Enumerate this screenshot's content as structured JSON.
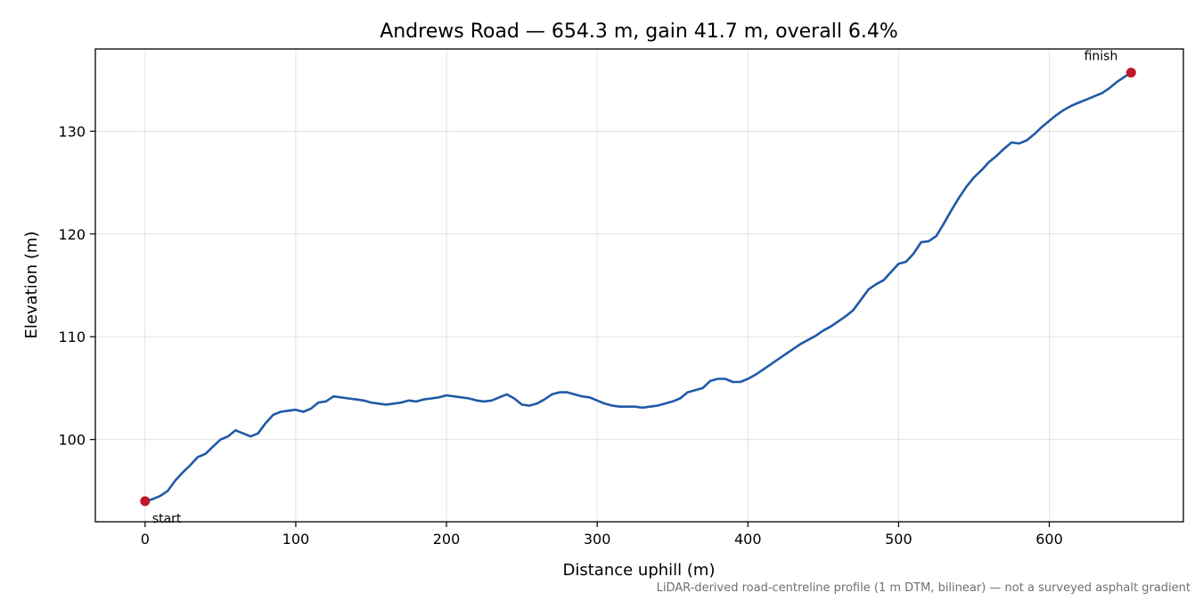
{
  "chart_data": {
    "type": "line",
    "title": "Andrews Road — 654.3 m, gain 41.7 m, overall 6.4%",
    "xlabel": "Distance uphill (m)",
    "ylabel": "Elevation (m)",
    "xlim": [
      -33,
      689
    ],
    "ylim": [
      92,
      138
    ],
    "xticks": [
      0,
      100,
      200,
      300,
      400,
      500,
      600
    ],
    "yticks": [
      100,
      110,
      120,
      130
    ],
    "grid": true,
    "line_color": "#1f5aa6",
    "marker_color": "#c0182a",
    "series": [
      {
        "x": [
          0,
          5,
          10,
          15,
          20,
          25,
          30,
          35,
          40,
          45,
          50,
          55,
          60,
          65,
          70,
          75,
          80,
          85,
          90,
          95,
          100,
          105,
          110,
          115,
          120,
          125,
          130,
          135,
          140,
          145,
          150,
          155,
          160,
          165,
          170,
          175,
          180,
          185,
          190,
          195,
          200,
          205,
          210,
          215,
          220,
          225,
          230,
          235,
          240,
          245,
          250,
          255,
          260,
          265,
          270,
          275,
          280,
          285,
          290,
          295,
          300,
          305,
          310,
          315,
          320,
          325,
          330,
          335,
          340,
          345,
          350,
          355,
          360,
          365,
          370,
          375,
          380,
          385,
          390,
          395,
          400,
          405,
          410,
          415,
          420,
          425,
          430,
          435,
          440,
          445,
          450,
          455,
          460,
          465,
          470,
          475,
          480,
          485,
          490,
          495,
          500,
          505,
          510,
          515,
          520,
          525,
          530,
          535,
          540,
          545,
          550,
          555,
          560,
          565,
          570,
          575,
          580,
          585,
          590,
          595,
          600,
          605,
          610,
          615,
          620,
          625,
          630,
          635,
          640,
          645,
          650,
          654.3
        ],
        "y": [
          94.0,
          94.2,
          94.5,
          95.0,
          96.0,
          96.8,
          97.5,
          98.3,
          98.6,
          99.3,
          100.0,
          100.3,
          100.9,
          100.6,
          100.3,
          100.6,
          101.6,
          102.4,
          102.7,
          102.8,
          102.9,
          102.7,
          103.0,
          103.6,
          103.7,
          104.2,
          104.1,
          104.0,
          103.9,
          103.8,
          103.6,
          103.5,
          103.4,
          103.5,
          103.6,
          103.8,
          103.7,
          103.9,
          104.0,
          104.1,
          104.3,
          104.2,
          104.1,
          104.0,
          103.8,
          103.7,
          103.8,
          104.1,
          104.4,
          104.0,
          103.4,
          103.3,
          103.5,
          103.9,
          104.4,
          104.6,
          104.6,
          104.4,
          104.2,
          104.1,
          103.8,
          103.5,
          103.3,
          103.2,
          103.2,
          103.2,
          103.1,
          103.2,
          103.3,
          103.5,
          103.7,
          104.0,
          104.6,
          104.8,
          105.0,
          105.7,
          105.9,
          105.9,
          105.6,
          105.6,
          105.9,
          106.3,
          106.8,
          107.3,
          107.8,
          108.3,
          108.8,
          109.3,
          109.7,
          110.1,
          110.6,
          111.0,
          111.5,
          112.0,
          112.6,
          113.6,
          114.6,
          115.1,
          115.5,
          116.3,
          117.1,
          117.3,
          118.1,
          119.2,
          119.3,
          119.8,
          121.0,
          122.3,
          123.5,
          124.6,
          125.5,
          126.2,
          127.0,
          127.6,
          128.3,
          128.9,
          128.8,
          129.1,
          129.7,
          130.4,
          131.0,
          131.6,
          132.1,
          132.5,
          132.8,
          133.1,
          133.4,
          133.7,
          134.2,
          134.8,
          135.3,
          135.7
        ]
      }
    ],
    "annotations": [
      {
        "text": "start",
        "x": 0,
        "y": 94.0
      },
      {
        "text": "finish",
        "x": 654.3,
        "y": 135.7
      }
    ],
    "footnote": "LiDAR-derived road-centreline profile (1 m DTM, bilinear) — not a surveyed asphalt gradient"
  }
}
